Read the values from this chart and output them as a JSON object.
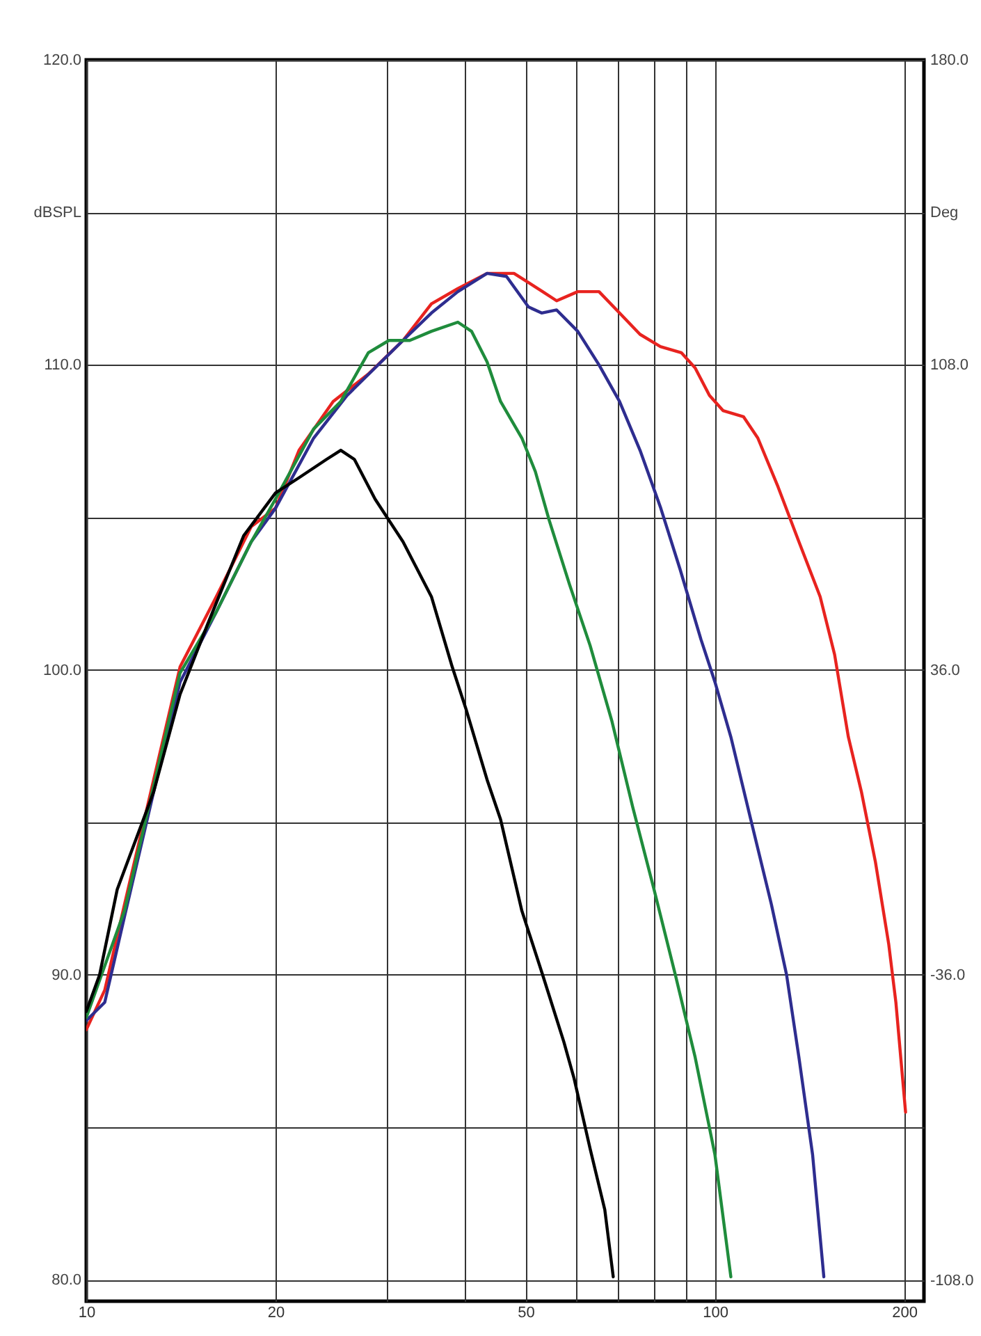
{
  "chart_data": {
    "type": "line",
    "ylabel": "dBSPL",
    "y2label": "Deg",
    "x": [
      10,
      10.7,
      11.5,
      12.8,
      14.1,
      16.1,
      18.3,
      20,
      21.8,
      24.7,
      28.1,
      31.9,
      35.4,
      39,
      43.4,
      47.9,
      53.2,
      56,
      60.5,
      65.4,
      70.5,
      76,
      81.9,
      88.4,
      93,
      98,
      103,
      111,
      117,
      126,
      136,
      147,
      155,
      163,
      171,
      180,
      189,
      194,
      201
    ],
    "series": [
      {
        "color": "#e8231f",
        "values": [
          88.2,
          89.5,
          92.3,
          96.4,
          100.1,
          102.4,
          104.7,
          105.3,
          107.2,
          108.8,
          109.7,
          110.8,
          112.0,
          112.5,
          113.0,
          113.0,
          112.4,
          112.1,
          112.4,
          112.4,
          111.7,
          111.0,
          110.6,
          110.4,
          109.9,
          109.0,
          108.5,
          108.3,
          107.6,
          106.0,
          104.2,
          102.4,
          100.5,
          97.8,
          96.0,
          93.7,
          91.0,
          89.1,
          85.5
        ]
      },
      {
        "color": "#2e2d8f",
        "x": [
          10,
          10.7,
          11.5,
          12.8,
          14.1,
          16.1,
          18.3,
          20,
          23,
          26,
          31.9,
          35.4,
          39,
          43.4,
          46.6,
          50.5,
          53,
          56,
          60.5,
          65.4,
          70.5,
          76,
          82,
          88,
          95,
          100,
          106,
          114,
          123,
          130,
          136,
          143,
          149
        ],
        "values": [
          88.5,
          89.1,
          91.9,
          96.0,
          99.6,
          101.9,
          104.2,
          105.3,
          107.6,
          109.0,
          110.8,
          111.7,
          112.4,
          113.0,
          112.9,
          111.9,
          111.7,
          111.8,
          111.1,
          110.0,
          108.8,
          107.2,
          105.3,
          103.3,
          101.0,
          99.6,
          97.8,
          95.1,
          92.3,
          90.0,
          87.3,
          84.1,
          80.1
        ]
      },
      {
        "color": "#1f8c3c",
        "x": [
          10,
          11.5,
          12.8,
          14.1,
          16.1,
          18.3,
          20,
          23,
          25.4,
          28.1,
          30.3,
          32.7,
          35.4,
          39,
          41,
          43.4,
          45.6,
          49.3,
          51.8,
          54.5,
          58.7,
          63.3,
          68.6,
          74,
          80,
          86.5,
          93,
          100,
          106
        ],
        "values": [
          88.6,
          92.1,
          96.2,
          99.9,
          101.9,
          104.2,
          105.6,
          107.9,
          108.8,
          110.4,
          110.8,
          110.8,
          111.1,
          111.4,
          111.1,
          110.1,
          108.8,
          107.6,
          106.5,
          104.9,
          102.8,
          100.8,
          98.3,
          95.5,
          92.8,
          90.0,
          87.3,
          84.1,
          80.1
        ]
      },
      {
        "color": "#000000",
        "x": [
          10,
          10.5,
          11.2,
          12.8,
          14.1,
          15.6,
          17.8,
          20,
          21.8,
          24.1,
          25.4,
          26.7,
          28.8,
          31.9,
          35.4,
          38.2,
          40.2,
          43.4,
          45.6,
          49.3,
          53.2,
          57.5,
          59.7,
          63.3,
          66.8,
          68.9
        ],
        "values": [
          88.8,
          90.0,
          92.8,
          96.0,
          99.2,
          101.5,
          104.4,
          105.8,
          106.3,
          106.9,
          107.2,
          106.9,
          105.6,
          104.2,
          102.4,
          100.1,
          98.7,
          96.4,
          95.1,
          92.1,
          90.0,
          87.8,
          86.6,
          84.3,
          82.3,
          80.1
        ]
      }
    ],
    "xlim": [
      10,
      215
    ],
    "log": "x",
    "xticks": [
      10,
      20,
      {
        "value": 30,
        "label": null
      },
      {
        "value": 40,
        "label": null
      },
      50,
      {
        "value": 60,
        "label": null
      },
      {
        "value": 70,
        "label": null
      },
      {
        "value": 80,
        "label": null
      },
      {
        "value": 90,
        "label": null
      },
      100,
      200
    ],
    "ylim": [
      79.3,
      120
    ],
    "yticks": [
      {
        "value": 80,
        "label": "80.0"
      },
      {
        "value": 85,
        "label": null
      },
      {
        "value": 90,
        "label": "90.0"
      },
      {
        "value": 95,
        "label": null
      },
      {
        "value": 100,
        "label": "100.0"
      },
      {
        "value": 105,
        "label": null
      },
      {
        "value": 110,
        "label": "110.0"
      },
      {
        "value": 115,
        "label": null
      },
      {
        "value": 120,
        "label": "120.0"
      }
    ],
    "y2lim": [
      -113,
      180
    ],
    "y2ticks": [
      {
        "value": -108,
        "label": "-108.0"
      },
      {
        "value": -36,
        "label": "-36.0"
      },
      {
        "value": 36,
        "label": "36.0"
      },
      {
        "value": 108,
        "label": "108.0"
      },
      {
        "value": 180,
        "label": "180.0"
      }
    ],
    "grid": true,
    "legend": false,
    "marker": "none",
    "line_style": "solid"
  }
}
